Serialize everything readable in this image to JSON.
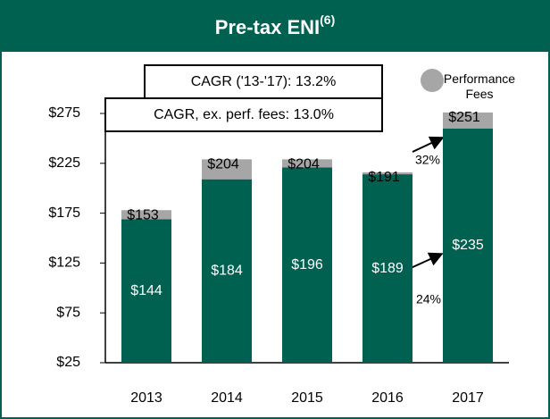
{
  "chart_data": {
    "type": "stacked_bar",
    "title": "Pre-tax ENI",
    "title_note": "(6)",
    "categories": [
      "2013",
      "2014",
      "2015",
      "2016",
      "2017"
    ],
    "series": [
      {
        "color": "#006150",
        "values": [
          144,
          184,
          196,
          189,
          235
        ],
        "value_labels": [
          "$144",
          "$184",
          "$196",
          "$189",
          "$235"
        ]
      },
      {
        "name": "Performance Fees",
        "color": "#a6a6a6",
        "values": [
          9,
          20,
          8,
          2,
          16
        ]
      }
    ],
    "totals": [
      153,
      204,
      204,
      191,
      251
    ],
    "total_labels": [
      "$153",
      "$204",
      "$204",
      "$191",
      "$251"
    ],
    "ylim": [
      25,
      275
    ],
    "yticks": [
      {
        "value": 25,
        "label": "$25"
      },
      {
        "value": 75,
        "label": "$75"
      },
      {
        "value": 125,
        "label": "$125"
      },
      {
        "value": 175,
        "label": "$175"
      },
      {
        "value": 225,
        "label": "$225"
      },
      {
        "value": 275,
        "label": "$275"
      }
    ],
    "annotations": [
      "CAGR ('13-'17): 13.2%",
      "CAGR, ex. perf. fees: 13.0%",
      "32%",
      "24%"
    ],
    "grid": false
  }
}
